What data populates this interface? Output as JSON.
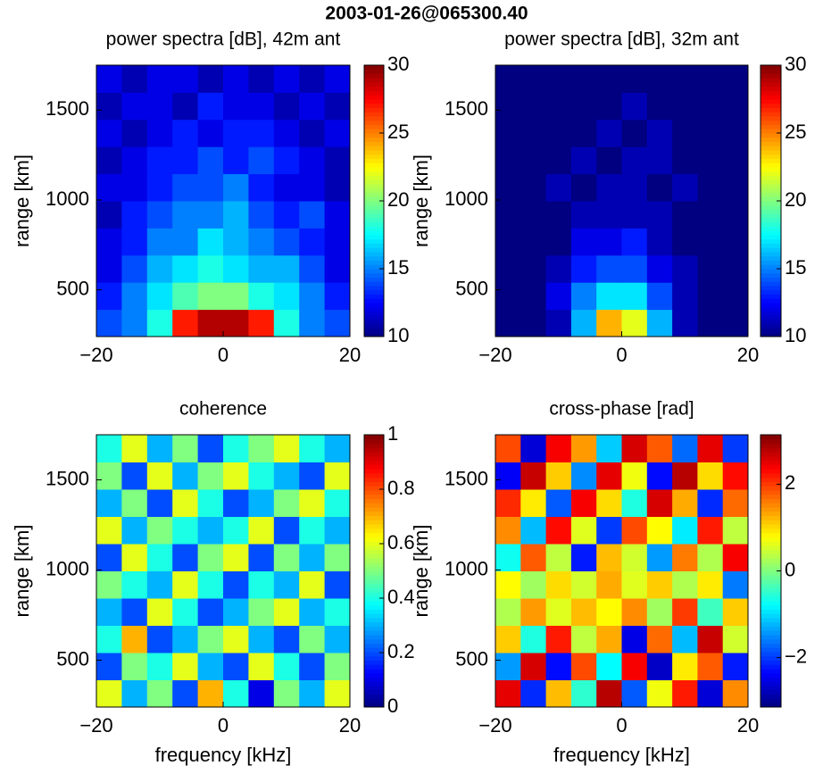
{
  "title": "2003-01-26@065300.40",
  "chart_data": [
    {
      "type": "heatmap",
      "title": "power spectra [dB], 42m ant",
      "ylabel": "range [km]",
      "colormap": "jet",
      "xlim": [
        -20,
        20
      ],
      "xticks": [
        {
          "value": -20,
          "label": "−20"
        },
        0,
        20
      ],
      "ylim": [
        240,
        1750
      ],
      "yticks": [
        500,
        1000,
        1500
      ],
      "zlim": [
        10,
        30
      ],
      "zticks": [
        10,
        15,
        20,
        25,
        30
      ],
      "z": [
        [
          14,
          15,
          18,
          27,
          29,
          29,
          27,
          18,
          15,
          14
        ],
        [
          13,
          15,
          17,
          19,
          20,
          20,
          18,
          17,
          15,
          13
        ],
        [
          12,
          14,
          16,
          17,
          18,
          17,
          16,
          16,
          14,
          12
        ],
        [
          12,
          13,
          15,
          15,
          17,
          16,
          15,
          14,
          13,
          12
        ],
        [
          11,
          13,
          14,
          15,
          15,
          16,
          14,
          13,
          14,
          12
        ],
        [
          12,
          12,
          13,
          14,
          14,
          15,
          13,
          12,
          12,
          11
        ],
        [
          11,
          12,
          13,
          13,
          14,
          13,
          14,
          13,
          12,
          11
        ],
        [
          12,
          11,
          12,
          13,
          12,
          13,
          13,
          12,
          11,
          12
        ],
        [
          11,
          12,
          12,
          11,
          13,
          12,
          12,
          11,
          12,
          11
        ],
        [
          12,
          11,
          12,
          12,
          11,
          12,
          11,
          12,
          11,
          12
        ]
      ]
    },
    {
      "type": "heatmap",
      "title": "power spectra [dB], 32m ant",
      "ylabel": "range [km]",
      "colormap": "jet",
      "xlim": [
        -20,
        20
      ],
      "xticks": [
        {
          "value": -20,
          "label": "−20"
        },
        0,
        20
      ],
      "ylim": [
        240,
        1750
      ],
      "yticks": [
        500,
        1000,
        1500
      ],
      "zlim": [
        10,
        30
      ],
      "zticks": [
        10,
        15,
        20,
        25,
        30
      ],
      "z": [
        [
          10,
          10,
          11,
          16,
          24,
          22,
          16,
          11,
          10,
          10
        ],
        [
          10,
          10,
          12,
          15,
          17,
          17,
          14,
          11,
          10,
          10
        ],
        [
          10,
          10,
          11,
          13,
          14,
          14,
          12,
          11,
          10,
          10
        ],
        [
          10,
          10,
          10,
          12,
          12,
          13,
          11,
          10,
          10,
          10
        ],
        [
          10,
          10,
          10,
          11,
          11,
          11,
          11,
          10,
          10,
          10
        ],
        [
          10,
          10,
          11,
          10,
          11,
          11,
          10,
          11,
          10,
          10
        ],
        [
          10,
          10,
          10,
          11,
          10,
          11,
          11,
          10,
          10,
          10
        ],
        [
          10,
          10,
          10,
          10,
          11,
          10,
          11,
          10,
          10,
          10
        ],
        [
          10,
          10,
          10,
          10,
          10,
          11,
          10,
          10,
          10,
          10
        ],
        [
          10,
          10,
          10,
          10,
          10,
          10,
          10,
          10,
          10,
          10
        ]
      ]
    },
    {
      "type": "heatmap",
      "title": "coherence",
      "xlabel": "frequency [kHz]",
      "ylabel": "range [km]",
      "colormap": "jet",
      "xlim": [
        -20,
        20
      ],
      "xticks": [
        {
          "value": -20,
          "label": "−20"
        },
        0,
        20
      ],
      "ylim": [
        240,
        1750
      ],
      "yticks": [
        500,
        1000,
        1500
      ],
      "zlim": [
        0,
        1
      ],
      "zticks": [
        0,
        0.2,
        0.4,
        0.6,
        0.8,
        1
      ],
      "z": [
        [
          0.6,
          0.3,
          0.5,
          0.2,
          0.7,
          0.4,
          0.1,
          0.5,
          0.3,
          0.6
        ],
        [
          0.2,
          0.5,
          0.4,
          0.6,
          0.3,
          0.2,
          0.6,
          0.4,
          0.2,
          0.5
        ],
        [
          0.4,
          0.7,
          0.2,
          0.3,
          0.5,
          0.6,
          0.3,
          0.2,
          0.5,
          0.3
        ],
        [
          0.3,
          0.2,
          0.6,
          0.4,
          0.2,
          0.3,
          0.5,
          0.6,
          0.3,
          0.4
        ],
        [
          0.5,
          0.4,
          0.3,
          0.6,
          0.4,
          0.2,
          0.4,
          0.3,
          0.6,
          0.2
        ],
        [
          0.2,
          0.6,
          0.4,
          0.2,
          0.5,
          0.6,
          0.2,
          0.5,
          0.3,
          0.5
        ],
        [
          0.6,
          0.3,
          0.5,
          0.4,
          0.3,
          0.4,
          0.6,
          0.2,
          0.4,
          0.3
        ],
        [
          0.3,
          0.5,
          0.2,
          0.6,
          0.4,
          0.2,
          0.3,
          0.5,
          0.6,
          0.4
        ],
        [
          0.5,
          0.2,
          0.6,
          0.3,
          0.5,
          0.6,
          0.4,
          0.3,
          0.2,
          0.6
        ],
        [
          0.4,
          0.6,
          0.3,
          0.5,
          0.2,
          0.4,
          0.5,
          0.6,
          0.4,
          0.3
        ]
      ]
    },
    {
      "type": "heatmap",
      "title": "cross-phase [rad]",
      "xlabel": "frequency [kHz]",
      "ylabel": "range [km]",
      "colormap": "jet",
      "xlim": [
        -20,
        20
      ],
      "xticks": [
        {
          "value": -20,
          "label": "−20"
        },
        0,
        20
      ],
      "ylim": [
        240,
        1750
      ],
      "yticks": [
        500,
        1000,
        1500
      ],
      "zlim": [
        -3.14,
        3.14
      ],
      "zticks": [
        {
          "value": -2,
          "label": "−2"
        },
        0,
        2
      ],
      "z": [
        [
          2.5,
          -2.1,
          1.2,
          -0.5,
          2.8,
          -1.8,
          0.7,
          2.2,
          -2.6,
          1.5
        ],
        [
          -1.4,
          2.6,
          -2.3,
          1.9,
          -0.8,
          2.4,
          -2.7,
          0.9,
          1.8,
          -2.2
        ],
        [
          1.1,
          -0.6,
          2.2,
          0.4,
          1.3,
          -2.5,
          1.7,
          -1.2,
          2.7,
          0.5
        ],
        [
          0.3,
          1.4,
          0.6,
          1.2,
          0.8,
          1.5,
          0.2,
          2.0,
          -0.4,
          1.1
        ],
        [
          0.8,
          0.2,
          1.0,
          0.5,
          1.3,
          0.6,
          1.1,
          0.3,
          0.9,
          -1.6
        ],
        [
          -0.7,
          1.8,
          0.4,
          -2.2,
          1.2,
          0.5,
          -1.4,
          1.6,
          0.3,
          2.4
        ],
        [
          1.5,
          -1.2,
          2.3,
          0.6,
          -2.0,
          1.9,
          0.8,
          -0.9,
          2.2,
          0.4
        ],
        [
          2.1,
          0.9,
          -1.8,
          2.4,
          1.0,
          -0.6,
          2.6,
          1.3,
          -2.1,
          1.7
        ],
        [
          -2.4,
          2.7,
          1.1,
          -1.5,
          2.5,
          0.7,
          -2.3,
          2.8,
          1.0,
          2.3
        ],
        [
          1.9,
          -2.6,
          2.4,
          1.4,
          -1.1,
          2.6,
          1.8,
          -1.7,
          2.5,
          -2.0
        ]
      ]
    }
  ]
}
